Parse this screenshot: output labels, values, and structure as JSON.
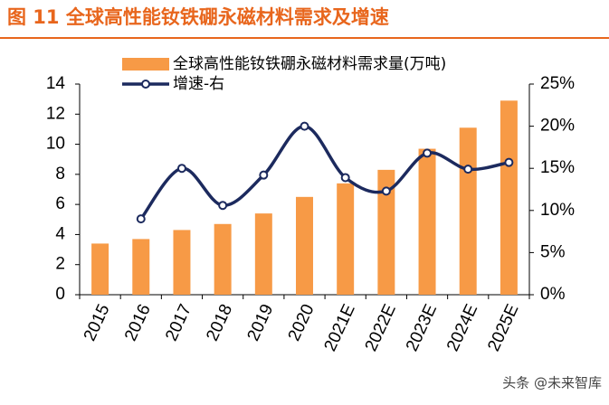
{
  "chart_data": {
    "type": "bar_line",
    "title": "图 11 全球高性能钕铁硼永磁材料需求及增速",
    "watermark": "头条 @未来智库",
    "categories": [
      "2015",
      "2016",
      "2017",
      "2018",
      "2019",
      "2020",
      "2021E",
      "2022E",
      "2023E",
      "2024E",
      "2025E"
    ],
    "series": [
      {
        "name": "全球高性能钕铁硼永磁材料需求量(万吨)",
        "type": "bar",
        "color": "#f79a46",
        "values": [
          3.4,
          3.7,
          4.3,
          4.7,
          5.4,
          6.5,
          7.4,
          8.3,
          9.7,
          11.1,
          12.9
        ]
      },
      {
        "name": "增速-右",
        "type": "line",
        "axis": "y2",
        "color": "#1c2a5e",
        "values": [
          null,
          9.0,
          15.0,
          10.6,
          14.2,
          20.0,
          13.9,
          12.3,
          16.8,
          14.9,
          15.7
        ]
      }
    ],
    "ylim": [
      0,
      14
    ],
    "yticks": [
      0,
      2,
      4,
      6,
      8,
      10,
      12,
      14
    ],
    "y2lim": [
      0,
      25
    ],
    "y2ticks": [
      {
        "value": 0,
        "label": "0%"
      },
      {
        "value": 5,
        "label": "5%"
      },
      {
        "value": 10,
        "label": "10%"
      },
      {
        "value": 15,
        "label": "15%"
      },
      {
        "value": 20,
        "label": "20%"
      },
      {
        "value": 25,
        "label": "25%"
      }
    ]
  }
}
